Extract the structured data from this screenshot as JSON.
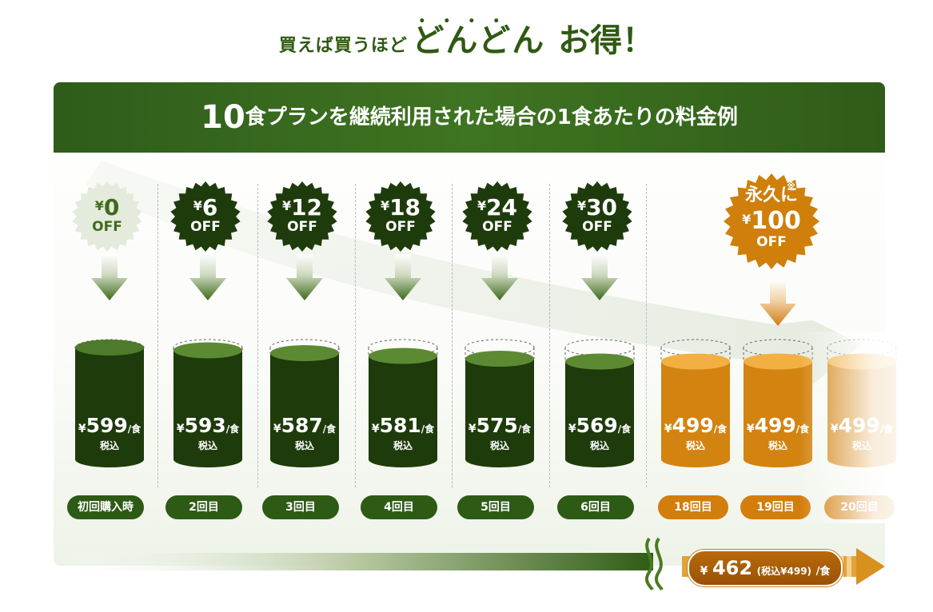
{
  "headline": {
    "prefix": "買えば買うほど",
    "emphasis": "どんどん",
    "dots": "••••",
    "suffix": "お得！"
  },
  "banner": {
    "number": "10",
    "text": "食プランを継続利用された場合の1食あたりの料金例"
  },
  "yen": "¥",
  "off_label": "OFF",
  "per_meal": "/食",
  "tax_label": "税込",
  "columns": [
    {
      "discount": "0",
      "price": "599",
      "label": "初回購入時",
      "style": "light"
    },
    {
      "discount": "6",
      "price": "593",
      "label": "2回目",
      "style": "dark",
      "fill_level": 0.95
    },
    {
      "discount": "12",
      "price": "587",
      "label": "3回目",
      "style": "dark",
      "fill_level": 0.9
    },
    {
      "discount": "18",
      "price": "581",
      "label": "4回目",
      "style": "dark",
      "fill_level": 0.85
    },
    {
      "discount": "24",
      "price": "575",
      "label": "5回目",
      "style": "dark",
      "fill_level": 0.8
    },
    {
      "discount": "30",
      "price": "569",
      "label": "6回目",
      "style": "dark",
      "fill_level": 0.75
    }
  ],
  "permanent": {
    "prefix": "永久に",
    "mark": "※",
    "discount": "100",
    "off_label": "OFF",
    "items": [
      {
        "price": "499",
        "label": "18回目"
      },
      {
        "price": "499",
        "label": "19回目"
      },
      {
        "price": "499",
        "label": "20回目"
      }
    ]
  },
  "final": {
    "yen": "¥",
    "price": "462",
    "note": "(税込¥499)",
    "unit": "/食"
  },
  "colors": {
    "dark_green": "#1e3b0c",
    "green_top": "#4e7a2c",
    "orange": "#d9870f",
    "light_badge": "#eef2e8"
  }
}
